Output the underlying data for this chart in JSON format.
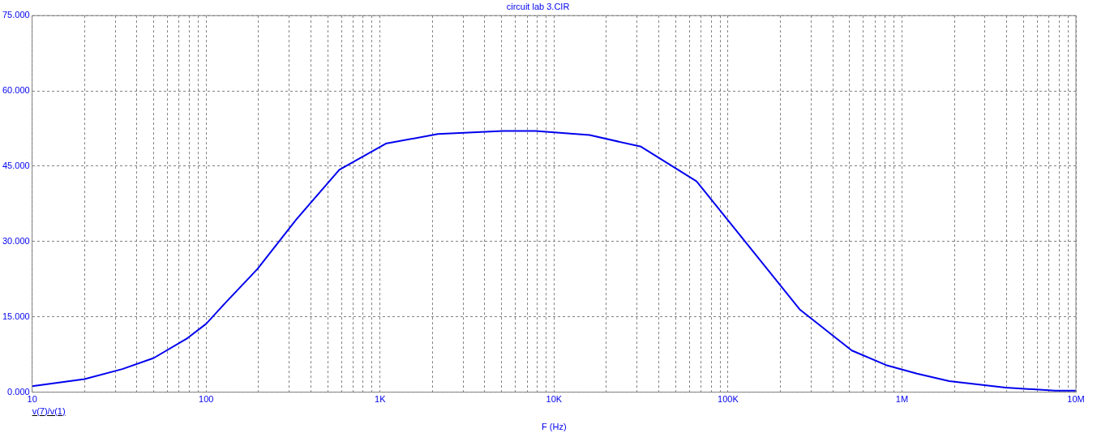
{
  "chart_data": {
    "type": "line",
    "title": "circuit lab 3.CIR",
    "xlabel": "F (Hz)",
    "log": "x",
    "grid": true,
    "legend": "bottom left",
    "line_style": "solid",
    "marker": "none",
    "xlim": [
      10,
      10000000
    ],
    "xticks": [
      {
        "value": 10,
        "label": "10"
      },
      {
        "value": 20,
        "label": null
      },
      {
        "value": 30,
        "label": null
      },
      {
        "value": 40,
        "label": null
      },
      {
        "value": 50,
        "label": null
      },
      {
        "value": 60,
        "label": null
      },
      {
        "value": 70,
        "label": null
      },
      {
        "value": 80,
        "label": null
      },
      {
        "value": 90,
        "label": null
      },
      {
        "value": 100,
        "label": "100"
      },
      {
        "value": 200,
        "label": null
      },
      {
        "value": 300,
        "label": null
      },
      {
        "value": 400,
        "label": null
      },
      {
        "value": 500,
        "label": null
      },
      {
        "value": 600,
        "label": null
      },
      {
        "value": 700,
        "label": null
      },
      {
        "value": 800,
        "label": null
      },
      {
        "value": 900,
        "label": null
      },
      {
        "value": 1000,
        "label": "1K"
      },
      {
        "value": 2000,
        "label": null
      },
      {
        "value": 3000,
        "label": null
      },
      {
        "value": 4000,
        "label": null
      },
      {
        "value": 5000,
        "label": null
      },
      {
        "value": 6000,
        "label": null
      },
      {
        "value": 7000,
        "label": null
      },
      {
        "value": 8000,
        "label": null
      },
      {
        "value": 9000,
        "label": null
      },
      {
        "value": 10000,
        "label": "10K"
      },
      {
        "value": 20000,
        "label": null
      },
      {
        "value": 30000,
        "label": null
      },
      {
        "value": 40000,
        "label": null
      },
      {
        "value": 50000,
        "label": null
      },
      {
        "value": 60000,
        "label": null
      },
      {
        "value": 70000,
        "label": null
      },
      {
        "value": 80000,
        "label": null
      },
      {
        "value": 90000,
        "label": null
      },
      {
        "value": 100000,
        "label": "100K"
      },
      {
        "value": 200000,
        "label": null
      },
      {
        "value": 300000,
        "label": null
      },
      {
        "value": 400000,
        "label": null
      },
      {
        "value": 500000,
        "label": null
      },
      {
        "value": 600000,
        "label": null
      },
      {
        "value": 700000,
        "label": null
      },
      {
        "value": 800000,
        "label": null
      },
      {
        "value": 900000,
        "label": null
      },
      {
        "value": 1000000,
        "label": "1M"
      },
      {
        "value": 2000000,
        "label": null
      },
      {
        "value": 3000000,
        "label": null
      },
      {
        "value": 4000000,
        "label": null
      },
      {
        "value": 5000000,
        "label": null
      },
      {
        "value": 6000000,
        "label": null
      },
      {
        "value": 7000000,
        "label": null
      },
      {
        "value": 8000000,
        "label": null
      },
      {
        "value": 9000000,
        "label": null
      },
      {
        "value": 10000000,
        "label": "10M"
      }
    ],
    "ylim": [
      0,
      75
    ],
    "yticks": [
      {
        "value": 0,
        "label": "0.000"
      },
      {
        "value": 15,
        "label": "15.000"
      },
      {
        "value": 30,
        "label": "30.000"
      },
      {
        "value": 45,
        "label": "45.000"
      },
      {
        "value": 60,
        "label": "60.000"
      },
      {
        "value": 75,
        "label": "75.000"
      }
    ],
    "series": [
      {
        "name": "v(7)/v(1)",
        "color": "#0000ee",
        "x": [
          10,
          20,
          33,
          50,
          77,
          100,
          126,
          197,
          330,
          583,
          1080,
          2150,
          5100,
          7800,
          16000,
          31600,
          66000,
          258000,
          515000,
          810000,
          1220000,
          1870000,
          3950000,
          7600000,
          10000000
        ],
        "values": [
          1.2,
          2.6,
          4.6,
          6.8,
          10.6,
          13.6,
          17.4,
          24.5,
          34.4,
          44.3,
          49.5,
          51.4,
          52.0,
          52.0,
          51.2,
          48.9,
          42.0,
          16.5,
          8.3,
          5.4,
          3.7,
          2.2,
          0.9,
          0.3,
          0.3
        ]
      }
    ]
  }
}
